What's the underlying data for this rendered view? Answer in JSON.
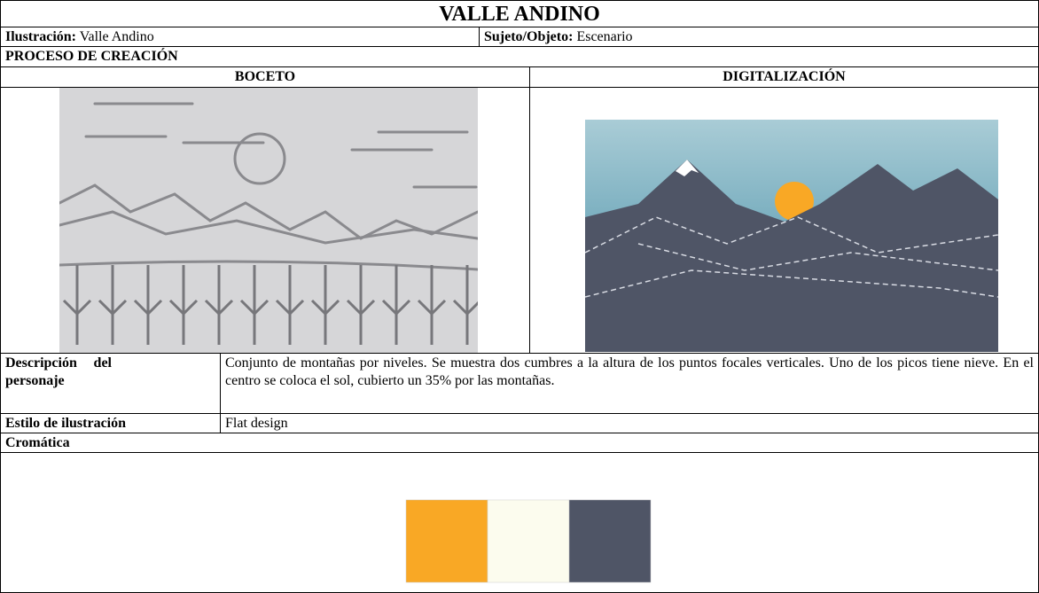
{
  "header": {
    "title": "VALLE ANDINO"
  },
  "info": {
    "illustration_label": "Ilustración:",
    "illustration_value": "Valle Andino",
    "subject_label": "Sujeto/Objeto:",
    "subject_value": "Escenario"
  },
  "process": {
    "title": "PROCESO DE CREACIÓN",
    "sketch_heading": "BOCETO",
    "digital_heading": "DIGITALIZACIÓN"
  },
  "description": {
    "label": "Descripción del personaje",
    "text": "Conjunto de montañas por niveles. Se muestra dos cumbres a la altura de los puntos focales verticales. Uno de los picos tiene nieve. En el centro se coloca el sol, cubierto un 35% por las montañas."
  },
  "style": {
    "label": "Estilo de ilustración",
    "value": "Flat design"
  },
  "chromatic": {
    "label": "Cromática",
    "palette": [
      "#f9a825",
      "#fcfcee",
      "#4f5566"
    ]
  }
}
